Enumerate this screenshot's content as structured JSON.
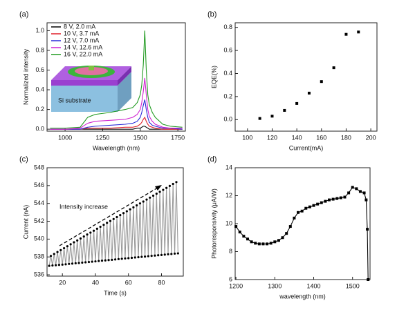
{
  "chart_data": [
    {
      "type": "line",
      "label": "(a)",
      "xlabel": "Wavelength (nm)",
      "ylabel": "Normalized intensity",
      "xlim": [
        880,
        1800
      ],
      "ylim": [
        -0.02,
        1.08
      ],
      "xticks": [
        1000,
        1250,
        1500,
        1750
      ],
      "yticks": [
        {
          "value": 0,
          "label": "0.0"
        },
        0.2,
        0.4,
        0.6,
        0.8,
        {
          "value": 1,
          "label": "1.0"
        }
      ],
      "legend": "upper left",
      "annotations": [
        "Si substrate"
      ],
      "x": [
        900,
        1000,
        1100,
        1150,
        1200,
        1300,
        1400,
        1450,
        1480,
        1500,
        1510,
        1520,
        1530,
        1540,
        1550,
        1560,
        1580,
        1600,
        1650,
        1700,
        1780
      ],
      "series": [
        {
          "name": "8 V, 2.0 mA",
          "color": "#000000",
          "values": [
            0,
            0,
            0,
            0,
            0,
            0,
            0,
            0,
            0.01,
            0.01,
            0.02,
            0.03,
            0.03,
            0.02,
            0.01,
            0,
            0,
            0,
            0,
            0,
            0
          ]
        },
        {
          "name": "10 V, 3.7 mA",
          "color": "#e0202a",
          "values": [
            0,
            0,
            0,
            0.01,
            0.01,
            0.01,
            0.02,
            0.02,
            0.03,
            0.05,
            0.07,
            0.1,
            0.12,
            0.08,
            0.05,
            0.03,
            0.02,
            0.01,
            0,
            0,
            0
          ]
        },
        {
          "name": "12 V, 7.0 mA",
          "color": "#2a2ad8",
          "values": [
            0,
            0,
            0,
            0.02,
            0.03,
            0.04,
            0.05,
            0.06,
            0.08,
            0.12,
            0.17,
            0.24,
            0.3,
            0.2,
            0.12,
            0.07,
            0.04,
            0.03,
            0.01,
            0.01,
            0
          ]
        },
        {
          "name": "14 V, 12.6 mA",
          "color": "#d020d0",
          "values": [
            0,
            0,
            0.01,
            0.06,
            0.08,
            0.09,
            0.1,
            0.12,
            0.15,
            0.2,
            0.27,
            0.38,
            0.52,
            0.35,
            0.2,
            0.13,
            0.08,
            0.05,
            0.02,
            0.01,
            0.01
          ]
        },
        {
          "name": "16 V, 22.0 mA",
          "color": "#209a20",
          "values": [
            0.01,
            0.01,
            0.02,
            0.12,
            0.15,
            0.17,
            0.2,
            0.22,
            0.27,
            0.35,
            0.45,
            0.65,
            1.0,
            0.6,
            0.35,
            0.25,
            0.17,
            0.12,
            0.05,
            0.03,
            0.02
          ]
        }
      ]
    },
    {
      "type": "scatter",
      "label": "(b)",
      "xlabel": "Current(mA)",
      "ylabel": "EQE(%)",
      "xlim": [
        90,
        205
      ],
      "ylim": [
        -0.1,
        0.84
      ],
      "xticks": [
        100,
        120,
        140,
        160,
        180,
        200
      ],
      "yticks": [
        {
          "value": 0,
          "label": "0.0"
        },
        0.2,
        0.4,
        0.6,
        0.8
      ],
      "marker": "square",
      "color": "#000000",
      "x": [
        110,
        120,
        130,
        140,
        150,
        160,
        170,
        180,
        190
      ],
      "values": [
        0.01,
        0.03,
        0.08,
        0.14,
        0.23,
        0.33,
        0.45,
        0.74,
        0.76
      ]
    },
    {
      "type": "line",
      "label": "(c)",
      "xlabel": "Time (s)",
      "ylabel": "Current (nA)",
      "xlim": [
        10.7,
        93.2
      ],
      "ylim": [
        535.85,
        548
      ],
      "xticks": [
        20,
        40,
        60,
        80
      ],
      "yticks": [
        536,
        538,
        540,
        542,
        544,
        546,
        548
      ],
      "color": "#9a9a9a",
      "marker": "circle",
      "marker_color": "#000000",
      "annotations": [
        "Intensity increase"
      ],
      "x": [
        12,
        13,
        14,
        15,
        16,
        17,
        18,
        19,
        20,
        21,
        22,
        23,
        24,
        25,
        26,
        27,
        28,
        29,
        30,
        31,
        32,
        33,
        34,
        35,
        36,
        37,
        38,
        39,
        40,
        41,
        42,
        43,
        44,
        45,
        46,
        47,
        48,
        49,
        50,
        51,
        52,
        53,
        54,
        55,
        56,
        57,
        58,
        59,
        60,
        61,
        62,
        63,
        64,
        65,
        66,
        67,
        68,
        69,
        70,
        71,
        72,
        73,
        74,
        75,
        76,
        77,
        78,
        79,
        80,
        81,
        82,
        83,
        84,
        85,
        86,
        87,
        88,
        89,
        90
      ],
      "values": [
        537.0,
        538.11,
        537.04,
        538.33,
        537.07,
        538.55,
        537.11,
        538.76,
        537.14,
        538.98,
        537.18,
        539.2,
        537.22,
        539.42,
        537.25,
        539.64,
        537.29,
        539.85,
        537.32,
        540.07,
        537.36,
        540.29,
        537.4,
        540.51,
        537.43,
        540.73,
        537.47,
        540.94,
        537.5,
        541.16,
        537.54,
        541.38,
        537.58,
        541.6,
        537.61,
        541.82,
        537.65,
        542.03,
        537.68,
        542.25,
        537.72,
        542.47,
        537.76,
        542.69,
        537.79,
        542.91,
        537.83,
        543.12,
        537.86,
        543.34,
        537.9,
        543.56,
        537.94,
        543.78,
        537.97,
        544.0,
        538.01,
        544.21,
        538.04,
        544.43,
        538.08,
        544.65,
        538.12,
        544.87,
        538.15,
        545.09,
        538.19,
        545.3,
        538.22,
        545.52,
        538.26,
        545.74,
        538.3,
        545.96,
        538.33,
        546.18,
        538.37,
        546.39,
        538.4
      ]
    },
    {
      "type": "line",
      "label": "(d)",
      "xlabel": "wavelength (nm)",
      "ylabel": "Photoresponsivity (μA/W)",
      "xlim": [
        1198,
        1545
      ],
      "ylim": [
        6,
        14
      ],
      "xticks": [
        1200,
        1300,
        1400,
        1500
      ],
      "yticks": [
        6,
        8,
        10,
        12,
        14
      ],
      "color": "#000000",
      "marker": "square",
      "marker_color": "#000000",
      "x": [
        1200,
        1210,
        1220,
        1230,
        1240,
        1250,
        1260,
        1270,
        1280,
        1290,
        1300,
        1310,
        1320,
        1330,
        1340,
        1350,
        1360,
        1370,
        1380,
        1390,
        1400,
        1410,
        1420,
        1430,
        1440,
        1450,
        1460,
        1470,
        1480,
        1490,
        1500,
        1510,
        1520,
        1530,
        1535,
        1538,
        1540
      ],
      "values": [
        9.8,
        9.4,
        9.1,
        8.9,
        8.7,
        8.6,
        8.55,
        8.55,
        8.55,
        8.6,
        8.7,
        8.8,
        9.0,
        9.3,
        9.8,
        10.4,
        10.8,
        10.9,
        11.1,
        11.2,
        11.3,
        11.4,
        11.5,
        11.6,
        11.7,
        11.75,
        11.8,
        11.85,
        11.9,
        12.2,
        12.6,
        12.5,
        12.3,
        12.2,
        11.7,
        9.6,
        6.0
      ]
    }
  ]
}
